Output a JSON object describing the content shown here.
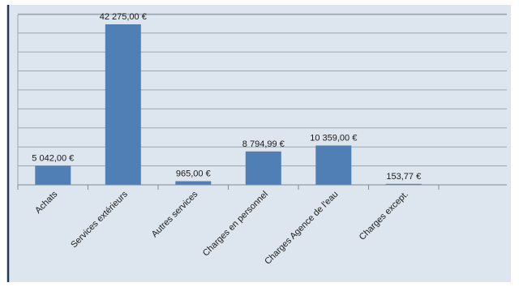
{
  "chart_data": {
    "type": "bar",
    "categories": [
      "Achats",
      "Services extérieurs",
      "Autres services",
      "Charges en personnel",
      "Charges Agence de l'eau",
      "Charges except."
    ],
    "values": [
      5042.0,
      42275.0,
      965.0,
      8794.99,
      10359.0,
      153.77
    ],
    "value_labels": [
      "5 042,00 €",
      "42 275,00 €",
      "965,00 €",
      "8 794,99 €",
      "10 359,00 €",
      "153,77 €"
    ],
    "ylim": [
      0,
      45000
    ],
    "grid": true,
    "colors": {
      "bar": "#4f7fb5",
      "plot_background": "#dde5ee",
      "gridline": "#9aa6b3",
      "frame": "#1f3b57"
    }
  }
}
